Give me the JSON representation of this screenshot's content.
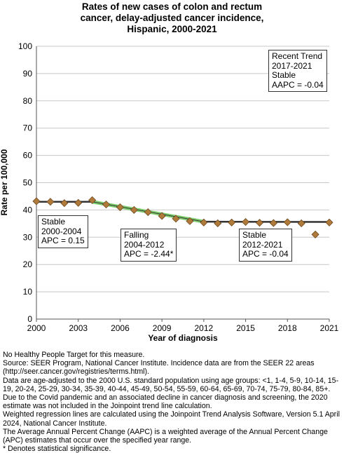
{
  "chart_data": {
    "type": "line",
    "title_lines": [
      "Rates of new cases of colon and rectum",
      "cancer, delay-adjusted cancer incidence,",
      "Hispanic,  2000-2021"
    ],
    "xlabel": "Year of diagnosis",
    "ylabel": "Rate per 100,000",
    "xlim": [
      2000,
      2021
    ],
    "ylim": [
      0,
      100
    ],
    "x_ticks": [
      "2000",
      "2003",
      "2006",
      "2009",
      "2012",
      "2015",
      "2018",
      "2021"
    ],
    "x_tick_values": [
      2000,
      2003,
      2006,
      2009,
      2012,
      2015,
      2018,
      2021
    ],
    "y_ticks": [
      "0",
      "10",
      "20",
      "30",
      "40",
      "50",
      "60",
      "70",
      "80",
      "90",
      "100"
    ],
    "y_tick_values": [
      0,
      10,
      20,
      30,
      40,
      50,
      60,
      70,
      80,
      90,
      100
    ],
    "grid": "horizontal",
    "series": [
      {
        "role": "observed",
        "marker": "diamond",
        "color": "#b07a3a",
        "x": [
          2000,
          2001,
          2002,
          2003,
          2004,
          2005,
          2006,
          2007,
          2008,
          2009,
          2010,
          2011,
          2012,
          2013,
          2014,
          2015,
          2016,
          2017,
          2018,
          2019,
          2020,
          2021
        ],
        "y": [
          43.2,
          43.0,
          42.5,
          42.6,
          43.6,
          42.0,
          41.0,
          40.0,
          39.2,
          37.8,
          36.8,
          35.9,
          35.4,
          35.1,
          35.4,
          35.6,
          35.3,
          35.2,
          35.5,
          35.1,
          31.0,
          35.4
        ]
      },
      {
        "role": "trend",
        "line_color": "#333333",
        "highlight_color": "#7fce6f",
        "segments": [
          {
            "x": [
              2000,
              2004
            ],
            "y": [
              43.0,
              43.0
            ],
            "highlight": false
          },
          {
            "x": [
              2004,
              2012
            ],
            "y": [
              43.0,
              35.7
            ],
            "highlight": true
          },
          {
            "x": [
              2012,
              2021
            ],
            "y": [
              35.7,
              35.6
            ],
            "highlight": false
          }
        ]
      }
    ],
    "annotations": [
      {
        "id": "recent",
        "lines": [
          "Recent Trend",
          "2017-2021",
          "Stable",
          "AAPC = -0.04"
        ]
      },
      {
        "id": "seg1",
        "lines": [
          "Stable",
          "2000-2004",
          "APC =  0.15"
        ]
      },
      {
        "id": "seg2",
        "lines": [
          "Falling",
          "2004-2012",
          "APC = -2.44*"
        ]
      },
      {
        "id": "seg3",
        "lines": [
          "Stable",
          "2012-2021",
          "APC = -0.04"
        ]
      }
    ]
  },
  "footnotes": [
    "No Healthy People Target for this measure.",
    "Source: SEER Program, National Cancer Institute. Incidence data are from the SEER 22 areas (http://seer.cancer.gov/registries/terms.html).",
    "Data are age-adjusted to the 2000 U.S. standard population using age groups: <1, 1-4, 5-9, 10-14, 15-19, 20-24, 25-29, 30-34, 35-39, 40-44, 45-49, 50-54, 55-59, 60-64, 65-69, 70-74, 75-79, 80-84, 85+.",
    "Due to the Covid pandemic and an associated decline in cancer diagnosis and screening, the 2020 estimate was not included in the Joinpoint trend line calculation.",
    "Weighted regression lines are calculated using the Joinpoint Trend Analysis Software, Version 5.1 April 2024, National Cancer Institute.",
    "The Average Annual Percent Change (AAPC) is a weighted average of the Annual Percent Change (APC) estimates that occur over the specified year range.",
    "* Denotes statistical significance."
  ]
}
